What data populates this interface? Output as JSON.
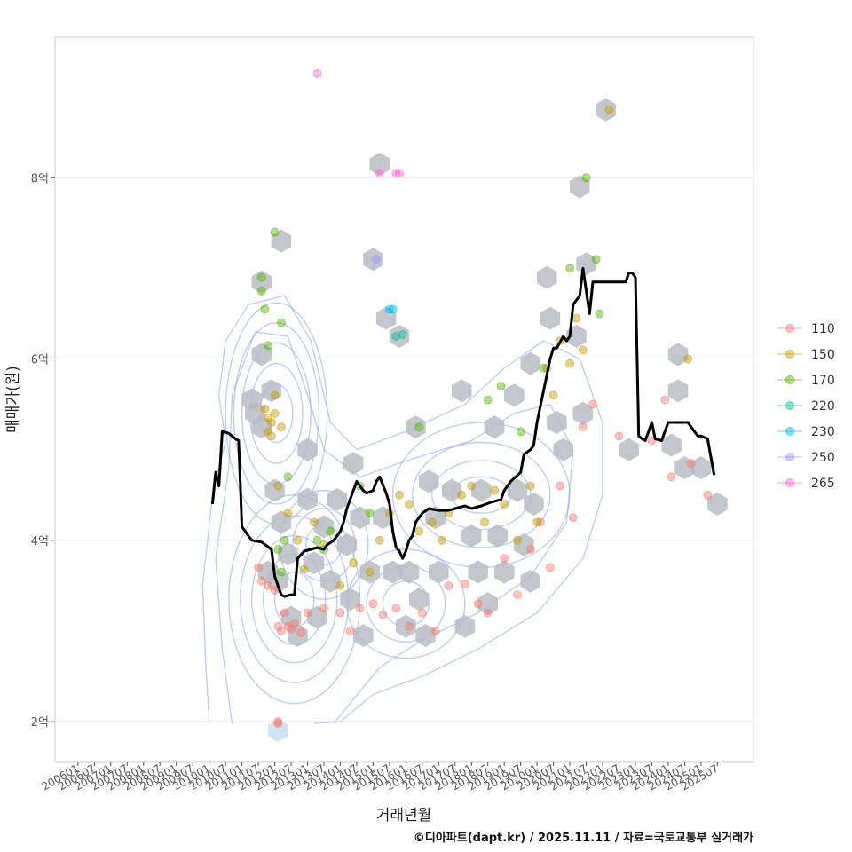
{
  "chart_data": {
    "type": "scatter",
    "title": "",
    "xlabel": "거래년월",
    "ylabel": "매매가(원)",
    "caption": "©디아파트(dapt.kr) / 2025.11.11 / 자료=국토교통부 실거래가",
    "x_ticks": [
      "200601",
      "200607",
      "200701",
      "200707",
      "200801",
      "200807",
      "200901",
      "200907",
      "201001",
      "201007",
      "201101",
      "201107",
      "201201",
      "201207",
      "201301",
      "201307",
      "201401",
      "201407",
      "201501",
      "201507",
      "201601",
      "201607",
      "201701",
      "201707",
      "201801",
      "201807",
      "201901",
      "201907",
      "202001",
      "202007",
      "202101",
      "202107",
      "202201",
      "202207",
      "202301",
      "202307",
      "202401",
      "202407",
      "202501",
      "202507"
    ],
    "xlim": [
      2005.3,
      2026.6
    ],
    "y_ticks": [
      {
        "value": 2,
        "label": "2억"
      },
      {
        "value": 4,
        "label": "4억"
      },
      {
        "value": 6,
        "label": "6억"
      },
      {
        "value": 8,
        "label": "8억"
      }
    ],
    "ylim": [
      1.55,
      9.55
    ],
    "y_unit": "억",
    "grid": true,
    "legend_position": "right",
    "legend": [
      {
        "name": "110",
        "color": "#F8766D"
      },
      {
        "name": "150",
        "color": "#C49A00"
      },
      {
        "name": "170",
        "color": "#53B400"
      },
      {
        "name": "220",
        "color": "#00C094"
      },
      {
        "name": "230",
        "color": "#00B6EB"
      },
      {
        "name": "250",
        "color": "#A58AFF"
      },
      {
        "name": "265",
        "color": "#FB61D7"
      }
    ],
    "trend_line": {
      "name": "moving average",
      "color": "#000000",
      "x": [
        2010.1,
        2010.2,
        2010.3,
        2010.4,
        2010.6,
        2010.7,
        2010.8,
        2010.9,
        2011.0,
        2011.2,
        2011.3,
        2011.6,
        2011.9,
        2012.0,
        2012.2,
        2012.3,
        2012.5,
        2012.6,
        2012.7,
        2012.9,
        2013.1,
        2013.3,
        2013.5,
        2013.6,
        2013.8,
        2013.9,
        2014.0,
        2014.1,
        2014.2,
        2014.4,
        2014.5,
        2014.6,
        2014.7,
        2014.8,
        2015.0,
        2015.1,
        2015.2,
        2015.4,
        2015.5,
        2015.6,
        2015.7,
        2015.8,
        2015.9,
        2016.0,
        2016.1,
        2016.2,
        2016.3,
        2016.5,
        2016.7,
        2017.0,
        2017.3,
        2017.5,
        2017.8,
        2018.0,
        2018.3,
        2018.6,
        2018.9,
        2019.0,
        2019.2,
        2019.5,
        2019.6,
        2019.8,
        2019.9,
        2020.0,
        2020.2,
        2020.4,
        2020.5,
        2020.6,
        2020.8,
        2020.9,
        2021.0,
        2021.1,
        2021.3,
        2021.4,
        2021.6,
        2021.7,
        2021.8,
        2021.9,
        2022.0,
        2022.2,
        2022.5,
        2022.7,
        2022.8,
        2022.9,
        2023.0,
        2023.1,
        2023.2,
        2023.3,
        2023.5,
        2023.6,
        2023.8,
        2024.0,
        2024.2,
        2024.4,
        2024.6,
        2024.7,
        2024.8,
        2024.9,
        2025.0,
        2025.2,
        2025.3,
        2025.4
      ],
      "y": [
        4.4,
        4.75,
        4.6,
        5.2,
        5.18,
        5.15,
        5.12,
        5.1,
        4.15,
        4.05,
        4.0,
        3.98,
        3.9,
        3.6,
        3.4,
        3.38,
        3.4,
        3.4,
        3.8,
        3.88,
        3.9,
        3.92,
        3.9,
        3.95,
        4.0,
        4.05,
        4.1,
        4.2,
        4.35,
        4.55,
        4.65,
        4.6,
        4.55,
        4.52,
        4.55,
        4.65,
        4.7,
        4.52,
        4.4,
        4.1,
        3.92,
        3.88,
        3.8,
        3.88,
        4.0,
        4.05,
        4.2,
        4.3,
        4.35,
        4.33,
        4.33,
        4.35,
        4.38,
        4.35,
        4.38,
        4.42,
        4.45,
        4.55,
        4.65,
        4.75,
        4.95,
        5.0,
        5.05,
        5.3,
        5.65,
        6.0,
        6.12,
        6.12,
        6.25,
        6.2,
        6.25,
        6.6,
        6.7,
        7.0,
        6.5,
        6.85,
        6.85,
        6.85,
        6.85,
        6.85,
        6.85,
        6.85,
        6.95,
        6.95,
        6.9,
        5.15,
        5.12,
        5.1,
        5.3,
        5.12,
        5.1,
        5.3,
        5.3,
        5.3,
        5.3,
        5.25,
        5.2,
        5.15,
        5.15,
        5.12,
        4.92,
        4.72
      ]
    },
    "series": [
      {
        "name": "110",
        "points": [
          [
            2011.5,
            3.7
          ],
          [
            2011.6,
            3.55
          ],
          [
            2011.8,
            3.5
          ],
          [
            2012.0,
            3.45
          ],
          [
            2012.1,
            3.05
          ],
          [
            2012.2,
            3.0
          ],
          [
            2012.3,
            3.2
          ],
          [
            2012.4,
            3.05
          ],
          [
            2012.5,
            3.02
          ],
          [
            2012.6,
            3.08
          ],
          [
            2012.8,
            2.98
          ],
          [
            2012.1,
            2.0
          ],
          [
            2012.1,
            1.98
          ],
          [
            2013.0,
            3.2
          ],
          [
            2013.5,
            3.25
          ],
          [
            2014.0,
            3.2
          ],
          [
            2014.3,
            3.0
          ],
          [
            2014.6,
            3.25
          ],
          [
            2015.0,
            3.3
          ],
          [
            2015.3,
            3.18
          ],
          [
            2015.7,
            3.25
          ],
          [
            2016.1,
            3.05
          ],
          [
            2016.5,
            3.2
          ],
          [
            2016.9,
            3.0
          ],
          [
            2017.3,
            3.5
          ],
          [
            2017.8,
            3.52
          ],
          [
            2018.2,
            3.3
          ],
          [
            2018.5,
            3.2
          ],
          [
            2019.0,
            3.8
          ],
          [
            2019.4,
            3.4
          ],
          [
            2019.8,
            3.9
          ],
          [
            2020.1,
            4.2
          ],
          [
            2020.4,
            3.7
          ],
          [
            2020.7,
            4.6
          ],
          [
            2021.1,
            4.25
          ],
          [
            2021.4,
            5.25
          ],
          [
            2021.7,
            5.5
          ],
          [
            2022.5,
            5.15
          ],
          [
            2023.5,
            5.1
          ],
          [
            2023.9,
            5.55
          ],
          [
            2024.1,
            4.7
          ],
          [
            2024.7,
            4.85
          ],
          [
            2025.2,
            4.5
          ]
        ]
      },
      {
        "name": "150",
        "points": [
          [
            2011.7,
            5.45
          ],
          [
            2011.8,
            5.35
          ],
          [
            2011.9,
            5.3
          ],
          [
            2012.0,
            5.4
          ],
          [
            2011.8,
            5.2
          ],
          [
            2012.0,
            5.6
          ],
          [
            2012.2,
            5.25
          ],
          [
            2011.9,
            5.15
          ],
          [
            2012.1,
            4.6
          ],
          [
            2012.4,
            4.3
          ],
          [
            2012.7,
            4.0
          ],
          [
            2012.9,
            3.68
          ],
          [
            2013.2,
            4.2
          ],
          [
            2013.5,
            3.95
          ],
          [
            2014.0,
            3.5
          ],
          [
            2014.4,
            3.75
          ],
          [
            2014.9,
            3.65
          ],
          [
            2015.2,
            4.0
          ],
          [
            2015.5,
            4.3
          ],
          [
            2015.8,
            4.5
          ],
          [
            2016.1,
            4.4
          ],
          [
            2016.4,
            4.1
          ],
          [
            2016.8,
            4.2
          ],
          [
            2017.1,
            4.0
          ],
          [
            2017.3,
            4.3
          ],
          [
            2017.7,
            4.5
          ],
          [
            2018.0,
            4.6
          ],
          [
            2018.4,
            4.2
          ],
          [
            2018.7,
            4.55
          ],
          [
            2019.0,
            4.4
          ],
          [
            2019.4,
            4.0
          ],
          [
            2019.8,
            4.6
          ],
          [
            2020.0,
            4.2
          ],
          [
            2020.3,
            5.9
          ],
          [
            2020.5,
            5.6
          ],
          [
            2020.7,
            6.2
          ],
          [
            2021.0,
            5.95
          ],
          [
            2021.2,
            6.45
          ],
          [
            2021.4,
            6.1
          ],
          [
            2022.2,
            8.75
          ],
          [
            2024.6,
            6.0
          ]
        ]
      },
      {
        "name": "170",
        "points": [
          [
            2011.6,
            6.9
          ],
          [
            2011.6,
            6.75
          ],
          [
            2011.7,
            6.55
          ],
          [
            2011.8,
            6.15
          ],
          [
            2012.0,
            7.4
          ],
          [
            2012.2,
            6.4
          ],
          [
            2012.4,
            4.7
          ],
          [
            2012.1,
            3.9
          ],
          [
            2012.2,
            3.65
          ],
          [
            2012.3,
            4.0
          ],
          [
            2013.3,
            4.0
          ],
          [
            2013.5,
            3.9
          ],
          [
            2013.7,
            4.1
          ],
          [
            2014.6,
            4.6
          ],
          [
            2014.9,
            4.3
          ],
          [
            2016.4,
            5.25
          ],
          [
            2018.5,
            5.55
          ],
          [
            2018.9,
            5.7
          ],
          [
            2019.5,
            5.2
          ],
          [
            2020.2,
            5.9
          ],
          [
            2021.0,
            7.0
          ],
          [
            2021.5,
            8.0
          ],
          [
            2021.8,
            7.1
          ],
          [
            2021.9,
            6.5
          ]
        ]
      },
      {
        "name": "220",
        "points": [
          [
            2015.7,
            6.25
          ],
          [
            2015.9,
            6.27
          ]
        ]
      },
      {
        "name": "230",
        "points": [
          [
            2015.5,
            6.55
          ],
          [
            2015.6,
            6.55
          ]
        ]
      },
      {
        "name": "250",
        "points": [
          [
            2015.1,
            7.1
          ]
        ]
      },
      {
        "name": "265",
        "points": [
          [
            2013.3,
            9.15
          ],
          [
            2015.2,
            8.05
          ],
          [
            2015.7,
            8.05
          ],
          [
            2015.8,
            8.05
          ]
        ]
      }
    ],
    "hexbins": [
      [
        2011.3,
        5.55
      ],
      [
        2011.4,
        5.4
      ],
      [
        2011.6,
        6.85
      ],
      [
        2011.6,
        6.05
      ],
      [
        2011.6,
        5.25
      ],
      [
        2011.9,
        5.65
      ],
      [
        2012.0,
        4.55
      ],
      [
        2012.2,
        4.2
      ],
      [
        2012.2,
        7.3
      ],
      [
        2012.4,
        3.85
      ],
      [
        2011.8,
        3.65
      ],
      [
        2012.1,
        3.55
      ],
      [
        2012.5,
        3.15
      ],
      [
        2012.7,
        2.95
      ],
      [
        2013.0,
        5.0
      ],
      [
        2013.0,
        4.45
      ],
      [
        2013.2,
        3.75
      ],
      [
        2013.3,
        3.15
      ],
      [
        2013.5,
        4.15
      ],
      [
        2013.7,
        3.55
      ],
      [
        2013.9,
        4.45
      ],
      [
        2014.2,
        3.95
      ],
      [
        2014.3,
        3.35
      ],
      [
        2014.4,
        4.85
      ],
      [
        2014.6,
        4.25
      ],
      [
        2014.7,
        2.95
      ],
      [
        2014.9,
        3.65
      ],
      [
        2015.0,
        7.1
      ],
      [
        2015.2,
        8.15
      ],
      [
        2015.3,
        4.25
      ],
      [
        2015.4,
        6.45
      ],
      [
        2015.6,
        3.65
      ],
      [
        2015.8,
        6.25
      ],
      [
        2016.0,
        3.05
      ],
      [
        2016.1,
        3.65
      ],
      [
        2016.3,
        5.25
      ],
      [
        2016.4,
        3.35
      ],
      [
        2016.6,
        2.95
      ],
      [
        2016.7,
        4.65
      ],
      [
        2016.9,
        4.25
      ],
      [
        2017.0,
        3.65
      ],
      [
        2017.4,
        4.55
      ],
      [
        2017.7,
        5.65
      ],
      [
        2017.8,
        3.05
      ],
      [
        2018.0,
        4.05
      ],
      [
        2018.2,
        3.65
      ],
      [
        2018.3,
        4.55
      ],
      [
        2018.5,
        3.3
      ],
      [
        2018.7,
        5.25
      ],
      [
        2018.8,
        4.05
      ],
      [
        2019.0,
        3.65
      ],
      [
        2019.3,
        5.6
      ],
      [
        2019.4,
        4.55
      ],
      [
        2019.6,
        3.95
      ],
      [
        2019.8,
        3.55
      ],
      [
        2019.8,
        5.95
      ],
      [
        2019.9,
        4.4
      ],
      [
        2020.3,
        6.9
      ],
      [
        2020.4,
        6.45
      ],
      [
        2020.6,
        5.3
      ],
      [
        2020.8,
        5.0
      ],
      [
        2021.2,
        6.25
      ],
      [
        2021.3,
        7.9
      ],
      [
        2021.4,
        5.4
      ],
      [
        2021.5,
        7.05
      ],
      [
        2022.1,
        8.75
      ],
      [
        2022.8,
        5.0
      ],
      [
        2024.3,
        6.05
      ],
      [
        2024.3,
        5.65
      ],
      [
        2024.1,
        5.05
      ],
      [
        2024.5,
        4.8
      ],
      [
        2025.0,
        4.8
      ],
      [
        2025.5,
        4.4
      ]
    ],
    "hexbin_highlight": [
      [
        2012.1,
        1.9
      ]
    ],
    "density_contours": [
      {
        "cx": 2012.05,
        "cy": 5.4,
        "rx": [
          0.5,
          0.8,
          1.05,
          1.3,
          1.55
        ],
        "ry": [
          0.32,
          0.55,
          0.78,
          1.0,
          1.22
        ]
      },
      {
        "cx": 2012.6,
        "cy": 3.35,
        "rx": [
          0.6,
          0.95,
          1.3,
          1.65,
          2.0
        ],
        "ry": [
          0.3,
          0.5,
          0.7,
          0.92,
          1.15
        ]
      },
      {
        "cx": 2013.5,
        "cy": 3.95,
        "rx": [
          0.55,
          0.95,
          1.35
        ],
        "ry": [
          0.22,
          0.4,
          0.6
        ]
      },
      {
        "cx": 2018.3,
        "cy": 4.5,
        "rx": [
          0.9,
          1.5,
          2.1,
          2.7
        ],
        "ry": [
          0.2,
          0.38,
          0.58,
          0.8
        ]
      },
      {
        "cx": 2016.0,
        "cy": 3.3,
        "rx": [
          0.7,
          1.2,
          1.8
        ],
        "ry": [
          0.25,
          0.42,
          0.6
        ]
      }
    ],
    "density_outer_contours": [
      [
        [
          2010.0,
          2.0
        ],
        [
          2009.9,
          2.6
        ],
        [
          2009.8,
          3.5
        ],
        [
          2010.1,
          4.5
        ],
        [
          2010.5,
          5.1
        ],
        [
          2010.3,
          5.6
        ],
        [
          2010.5,
          6.2
        ],
        [
          2011.2,
          6.6
        ],
        [
          2012.3,
          6.7
        ],
        [
          2013.1,
          6.2
        ],
        [
          2013.7,
          5.3
        ],
        [
          2014.5,
          5.0
        ],
        [
          2016.0,
          5.2
        ],
        [
          2017.8,
          5.5
        ],
        [
          2019.0,
          5.9
        ],
        [
          2020.2,
          6.2
        ],
        [
          2021.3,
          6.0
        ],
        [
          2022.0,
          5.3
        ],
        [
          2022.0,
          4.5
        ],
        [
          2021.4,
          3.8
        ],
        [
          2020.0,
          3.2
        ],
        [
          2018.2,
          2.8
        ],
        [
          2016.5,
          2.5
        ],
        [
          2015.0,
          2.3
        ],
        [
          2014.0,
          2.0
        ],
        [
          2013.2,
          1.98
        ]
      ],
      [
        [
          2010.7,
          1.98
        ],
        [
          2010.4,
          2.8
        ],
        [
          2010.2,
          3.8
        ],
        [
          2010.6,
          4.8
        ],
        [
          2010.7,
          5.6
        ],
        [
          2011.4,
          6.3
        ],
        [
          2012.4,
          6.25
        ],
        [
          2013.0,
          5.6
        ],
        [
          2013.5,
          5.0
        ],
        [
          2014.6,
          4.7
        ],
        [
          2016.2,
          4.9
        ],
        [
          2018.0,
          5.1
        ],
        [
          2019.3,
          5.4
        ],
        [
          2020.4,
          5.5
        ],
        [
          2021.1,
          5.0
        ],
        [
          2020.9,
          4.2
        ],
        [
          2019.8,
          3.6
        ],
        [
          2018.2,
          3.2
        ],
        [
          2016.5,
          2.9
        ],
        [
          2015.2,
          2.6
        ],
        [
          2014.3,
          2.2
        ],
        [
          2013.8,
          1.98
        ]
      ]
    ]
  }
}
